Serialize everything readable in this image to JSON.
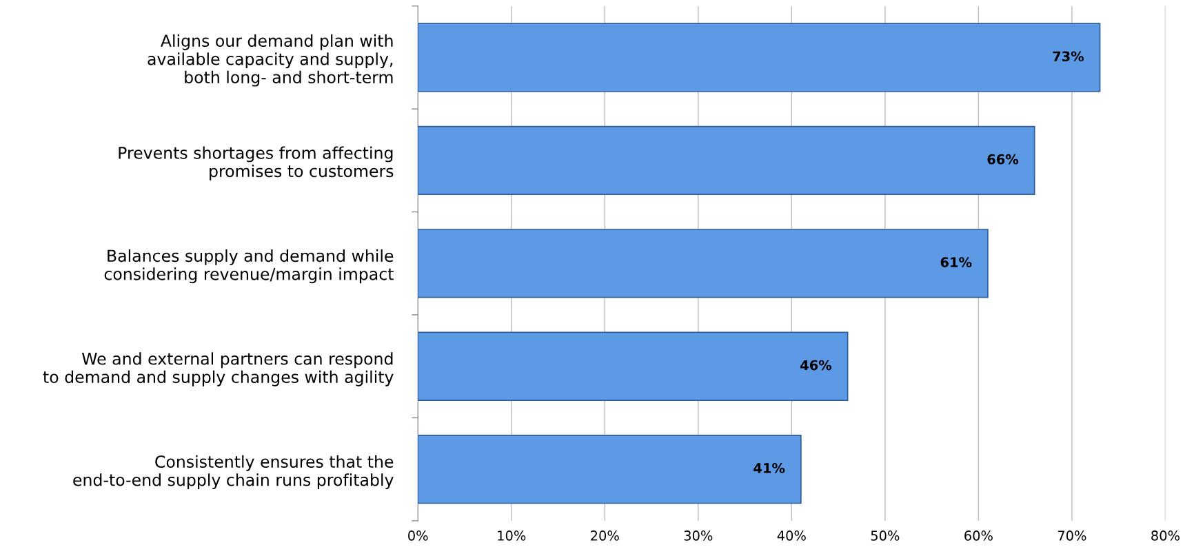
{
  "chart_data": {
    "type": "bar",
    "orientation": "horizontal",
    "categories": [
      "Aligns our demand plan with\navailable capacity and supply,\nboth long- and short-term",
      "Prevents shortages from affecting\npromises to customers",
      "Balances supply and demand while\nconsidering revenue/margin impact",
      "We and external partners can respond\nto demand and supply changes with agility",
      "Consistently ensures that the\nend-to-end supply chain runs profitably"
    ],
    "values": [
      73,
      66,
      61,
      46,
      41
    ],
    "value_labels": [
      "73%",
      "66%",
      "61%",
      "46%",
      "41%"
    ],
    "color": "#5c9ae6",
    "xlim": [
      0,
      80
    ],
    "xticks": [
      {
        "value": 0,
        "label": "0%"
      },
      {
        "value": 10,
        "label": "10%"
      },
      {
        "value": 20,
        "label": "20%"
      },
      {
        "value": 30,
        "label": "30%"
      },
      {
        "value": 40,
        "label": "40%"
      },
      {
        "value": 50,
        "label": "50%"
      },
      {
        "value": 60,
        "label": "60%"
      },
      {
        "value": 70,
        "label": "70%"
      },
      {
        "value": 80,
        "label": "80%"
      }
    ],
    "grid": "x",
    "legend": false
  }
}
